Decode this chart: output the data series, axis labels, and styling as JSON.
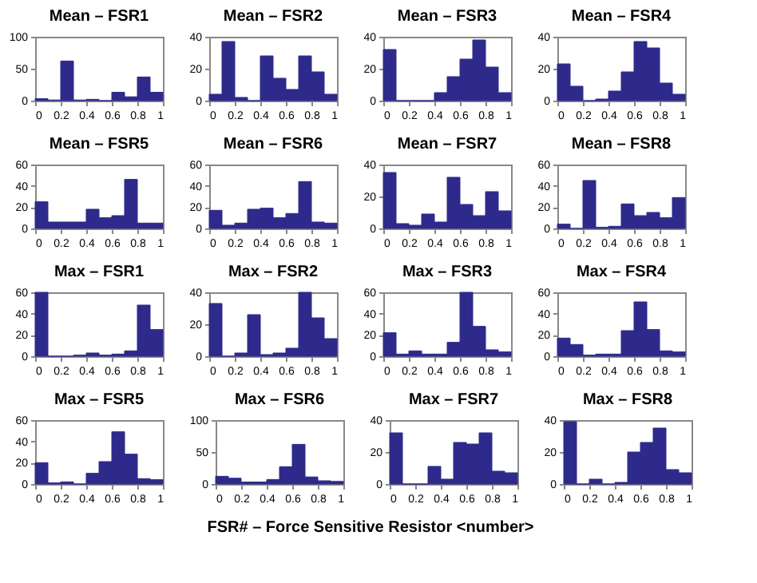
{
  "chart_data": [
    {
      "type": "histogram",
      "title": "Mean – FSR1",
      "bins": [
        0,
        0.1,
        0.2,
        0.3,
        0.4,
        0.5,
        0.6,
        0.7,
        0.8,
        0.9,
        1
      ],
      "values": [
        3,
        1,
        62,
        1,
        2,
        0,
        13,
        6,
        37,
        13
      ],
      "color": "#2e2a8c",
      "xlim": [
        0,
        1
      ],
      "xticks": [
        0,
        0.2,
        0.4,
        0.6,
        0.8,
        1
      ],
      "ylim": [
        0,
        100
      ],
      "yticks": [
        0,
        50,
        100
      ],
      "grid": false
    },
    {
      "type": "histogram",
      "title": "Mean – FSR2",
      "bins": [
        0,
        0.1,
        0.2,
        0.3,
        0.4,
        0.5,
        0.6,
        0.7,
        0.8,
        0.9,
        1
      ],
      "values": [
        4,
        37,
        2,
        0,
        28,
        14,
        7,
        28,
        18,
        4
      ],
      "color": "#2e2a8c",
      "xlim": [
        0,
        1
      ],
      "xticks": [
        0,
        0.2,
        0.4,
        0.6,
        0.8,
        1
      ],
      "ylim": [
        0,
        40
      ],
      "yticks": [
        0,
        20,
        40
      ],
      "grid": false
    },
    {
      "type": "histogram",
      "title": "Mean – FSR3",
      "bins": [
        0,
        0.1,
        0.2,
        0.3,
        0.4,
        0.5,
        0.6,
        0.7,
        0.8,
        0.9,
        1
      ],
      "values": [
        32,
        0,
        0,
        0,
        5,
        15,
        26,
        38,
        21,
        5
      ],
      "color": "#2e2a8c",
      "xlim": [
        0,
        1
      ],
      "xticks": [
        0,
        0.2,
        0.4,
        0.6,
        0.8,
        1
      ],
      "ylim": [
        0,
        40
      ],
      "yticks": [
        0,
        20,
        40
      ],
      "grid": false
    },
    {
      "type": "histogram",
      "title": "Mean – FSR4",
      "bins": [
        0,
        0.1,
        0.2,
        0.3,
        0.4,
        0.5,
        0.6,
        0.7,
        0.8,
        0.9,
        1
      ],
      "values": [
        23,
        9,
        0,
        1,
        6,
        18,
        37,
        33,
        11,
        4
      ],
      "color": "#2e2a8c",
      "xlim": [
        0,
        1
      ],
      "xticks": [
        0,
        0.2,
        0.4,
        0.6,
        0.8,
        1
      ],
      "ylim": [
        0,
        40
      ],
      "yticks": [
        0,
        20,
        40
      ],
      "grid": false
    },
    {
      "type": "histogram",
      "title": "Mean – FSR5",
      "bins": [
        0,
        0.1,
        0.2,
        0.3,
        0.4,
        0.5,
        0.6,
        0.7,
        0.8,
        0.9,
        1
      ],
      "values": [
        25,
        6,
        6,
        6,
        18,
        10,
        12,
        46,
        5,
        5
      ],
      "color": "#2e2a8c",
      "xlim": [
        0,
        1
      ],
      "xticks": [
        0,
        0.2,
        0.4,
        0.6,
        0.8,
        1
      ],
      "ylim": [
        0,
        60
      ],
      "yticks": [
        0,
        20,
        40,
        60
      ],
      "grid": false
    },
    {
      "type": "histogram",
      "title": "Mean – FSR6",
      "bins": [
        0,
        0.1,
        0.2,
        0.3,
        0.4,
        0.5,
        0.6,
        0.7,
        0.8,
        0.9,
        1
      ],
      "values": [
        17,
        3,
        5,
        18,
        19,
        10,
        14,
        44,
        6,
        5
      ],
      "color": "#2e2a8c",
      "xlim": [
        0,
        1
      ],
      "xticks": [
        0,
        0.2,
        0.4,
        0.6,
        0.8,
        1
      ],
      "ylim": [
        0,
        60
      ],
      "yticks": [
        0,
        20,
        40,
        60
      ],
      "grid": false
    },
    {
      "type": "histogram",
      "title": "Mean – FSR7",
      "bins": [
        0,
        0.1,
        0.2,
        0.3,
        0.4,
        0.5,
        0.6,
        0.7,
        0.8,
        0.9,
        1
      ],
      "values": [
        35,
        3,
        2,
        9,
        4,
        32,
        15,
        8,
        23,
        11
      ],
      "color": "#2e2a8c",
      "xlim": [
        0,
        1
      ],
      "xticks": [
        0,
        0.2,
        0.4,
        0.6,
        0.8,
        1
      ],
      "ylim": [
        0,
        40
      ],
      "yticks": [
        0,
        20,
        40
      ],
      "grid": false
    },
    {
      "type": "histogram",
      "title": "Mean – FSR8",
      "bins": [
        0,
        0.1,
        0.2,
        0.3,
        0.4,
        0.5,
        0.6,
        0.7,
        0.8,
        0.9,
        1
      ],
      "values": [
        4,
        0,
        45,
        1,
        2,
        23,
        12,
        15,
        10,
        29
      ],
      "color": "#2e2a8c",
      "xlim": [
        0,
        1
      ],
      "xticks": [
        0,
        0.2,
        0.4,
        0.6,
        0.8,
        1
      ],
      "ylim": [
        0,
        60
      ],
      "yticks": [
        0,
        20,
        40,
        60
      ],
      "grid": false
    },
    {
      "type": "histogram",
      "title": "Max – FSR1",
      "bins": [
        0,
        0.1,
        0.2,
        0.3,
        0.4,
        0.5,
        0.6,
        0.7,
        0.8,
        0.9,
        1
      ],
      "values": [
        60,
        0,
        0,
        1,
        3,
        1,
        2,
        5,
        48,
        25
      ],
      "color": "#2e2a8c",
      "xlim": [
        0,
        1
      ],
      "xticks": [
        0,
        0.2,
        0.4,
        0.6,
        0.8,
        1
      ],
      "ylim": [
        0,
        60
      ],
      "yticks": [
        0,
        20,
        40,
        60
      ],
      "grid": false
    },
    {
      "type": "histogram",
      "title": "Max – FSR2",
      "bins": [
        0,
        0.1,
        0.2,
        0.3,
        0.4,
        0.5,
        0.6,
        0.7,
        0.8,
        0.9,
        1
      ],
      "values": [
        33,
        0,
        2,
        26,
        1,
        2,
        5,
        40,
        24,
        11
      ],
      "color": "#2e2a8c",
      "xlim": [
        0,
        1
      ],
      "xticks": [
        0,
        0.2,
        0.4,
        0.6,
        0.8,
        1
      ],
      "ylim": [
        0,
        40
      ],
      "yticks": [
        0,
        20,
        40
      ],
      "grid": false
    },
    {
      "type": "histogram",
      "title": "Max – FSR3",
      "bins": [
        0,
        0.1,
        0.2,
        0.3,
        0.4,
        0.5,
        0.6,
        0.7,
        0.8,
        0.9,
        1
      ],
      "values": [
        22,
        2,
        5,
        2,
        2,
        13,
        60,
        28,
        6,
        4
      ],
      "color": "#2e2a8c",
      "xlim": [
        0,
        1
      ],
      "xticks": [
        0,
        0.2,
        0.4,
        0.6,
        0.8,
        1
      ],
      "ylim": [
        0,
        60
      ],
      "yticks": [
        0,
        20,
        40,
        60
      ],
      "grid": false
    },
    {
      "type": "histogram",
      "title": "Max – FSR4",
      "bins": [
        0,
        0.1,
        0.2,
        0.3,
        0.4,
        0.5,
        0.6,
        0.7,
        0.8,
        0.9,
        1
      ],
      "values": [
        17,
        11,
        1,
        2,
        2,
        24,
        51,
        25,
        5,
        4
      ],
      "color": "#2e2a8c",
      "xlim": [
        0,
        1
      ],
      "xticks": [
        0,
        0.2,
        0.4,
        0.6,
        0.8,
        1
      ],
      "ylim": [
        0,
        60
      ],
      "yticks": [
        0,
        20,
        40,
        60
      ],
      "grid": false
    },
    {
      "type": "histogram",
      "title": "Max – FSR5",
      "bins": [
        0,
        0.1,
        0.2,
        0.3,
        0.4,
        0.5,
        0.6,
        0.7,
        0.8,
        0.9,
        1
      ],
      "values": [
        20,
        1,
        2,
        0,
        10,
        21,
        49,
        28,
        5,
        4
      ],
      "color": "#2e2a8c",
      "xlim": [
        0,
        1
      ],
      "xticks": [
        0,
        0.2,
        0.4,
        0.6,
        0.8,
        1
      ],
      "ylim": [
        0,
        60
      ],
      "yticks": [
        0,
        20,
        40,
        60
      ],
      "grid": false
    },
    {
      "type": "histogram",
      "title": "Max – FSR6",
      "bins": [
        0,
        0.1,
        0.2,
        0.3,
        0.4,
        0.5,
        0.6,
        0.7,
        0.8,
        0.9,
        1
      ],
      "values": [
        12,
        9,
        3,
        3,
        7,
        27,
        62,
        11,
        5,
        4
      ],
      "color": "#2e2a8c",
      "xlim": [
        0,
        1
      ],
      "xticks": [
        0,
        0.2,
        0.4,
        0.6,
        0.8,
        1
      ],
      "ylim": [
        0,
        100
      ],
      "yticks": [
        0,
        50,
        100
      ],
      "grid": false
    },
    {
      "type": "histogram",
      "title": "Max – FSR7",
      "bins": [
        0,
        0.1,
        0.2,
        0.3,
        0.4,
        0.5,
        0.6,
        0.7,
        0.8,
        0.9,
        1
      ],
      "values": [
        32,
        0,
        0,
        11,
        3,
        26,
        25,
        32,
        8,
        7
      ],
      "color": "#2e2a8c",
      "xlim": [
        0,
        1
      ],
      "xticks": [
        0,
        0.2,
        0.4,
        0.6,
        0.8,
        1
      ],
      "ylim": [
        0,
        40
      ],
      "yticks": [
        0,
        20,
        40
      ],
      "grid": false
    },
    {
      "type": "histogram",
      "title": "Max – FSR8",
      "bins": [
        0,
        0.1,
        0.2,
        0.3,
        0.4,
        0.5,
        0.6,
        0.7,
        0.8,
        0.9,
        1
      ],
      "values": [
        39,
        0,
        3,
        0,
        1,
        20,
        26,
        35,
        9,
        7
      ],
      "color": "#2e2a8c",
      "xlim": [
        0,
        1
      ],
      "xticks": [
        0,
        0.2,
        0.4,
        0.6,
        0.8,
        1
      ],
      "ylim": [
        0,
        40
      ],
      "yticks": [
        0,
        20,
        40
      ],
      "grid": false,
      "annotations": [
        "FSR# – Force Sensitive Resistor <number>"
      ]
    }
  ]
}
